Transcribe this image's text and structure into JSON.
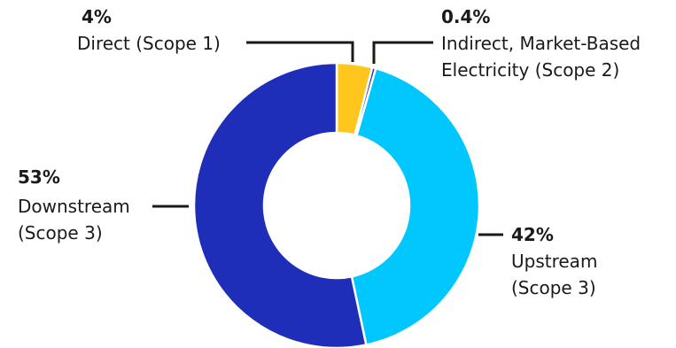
{
  "chart_data": {
    "type": "pie",
    "variant": "donut",
    "title": "",
    "slices": [
      {
        "percent_label": "4%",
        "label_lines": [
          "Direct (Scope 1)"
        ],
        "value": 4,
        "color": "#FFC61E"
      },
      {
        "percent_label": "0.4%",
        "label_lines": [
          "Indirect, Market-Based",
          "Electricity (Scope 2)"
        ],
        "value": 0.4,
        "color": "#1D2FB8"
      },
      {
        "percent_label": "42%",
        "label_lines": [
          "Upstream",
          "(Scope 3)"
        ],
        "value": 42,
        "color": "#00C7FD"
      },
      {
        "percent_label": "53%",
        "label_lines": [
          "Downstream",
          "(Scope 3)"
        ],
        "value": 53,
        "color": "#1E2EB8"
      }
    ]
  }
}
